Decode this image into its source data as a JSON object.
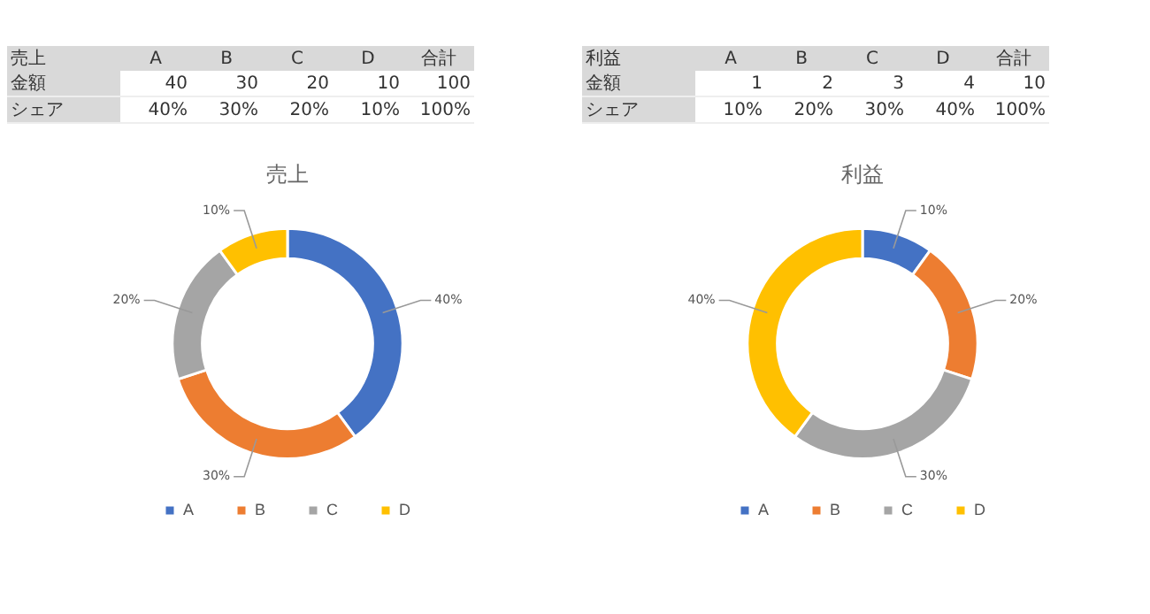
{
  "chart_data": [
    {
      "type": "donut",
      "title": "売上",
      "categories": [
        "A",
        "B",
        "C",
        "D"
      ],
      "values": [
        40,
        30,
        20,
        10
      ],
      "colors": [
        "#4472c4",
        "#ed7d31",
        "#a5a5a5",
        "#ffc000"
      ],
      "value_labels": [
        "40%",
        "30%",
        "20%",
        "10%"
      ],
      "legend": "bottom",
      "annotations": [
        "合計",
        "金額",
        "シェア",
        "40",
        "30",
        "20",
        "10",
        "100",
        "100%"
      ]
    },
    {
      "type": "donut",
      "title": "利益",
      "categories": [
        "A",
        "B",
        "C",
        "D"
      ],
      "values": [
        10,
        20,
        30,
        40
      ],
      "colors": [
        "#4472c4",
        "#ed7d31",
        "#a5a5a5",
        "#ffc000"
      ],
      "value_labels": [
        "10%",
        "20%",
        "30%",
        "40%"
      ],
      "legend": "bottom",
      "annotations": [
        "合計",
        "金額",
        "シェア",
        "1",
        "2",
        "3",
        "4",
        "10",
        "100%"
      ]
    }
  ]
}
